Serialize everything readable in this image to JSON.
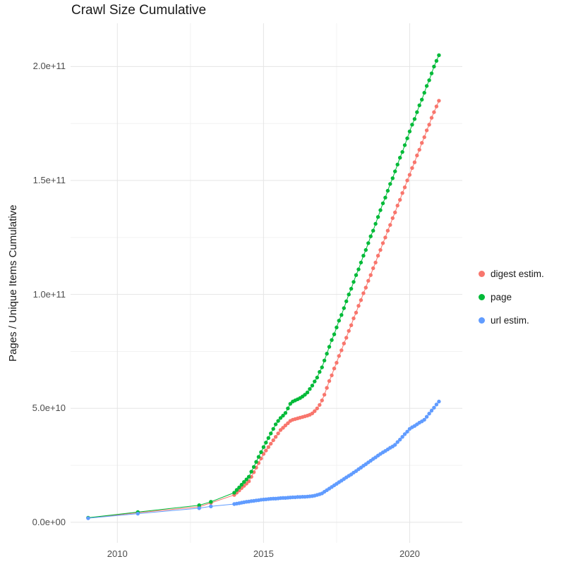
{
  "chart_data": {
    "type": "scatter",
    "title": "Crawl Size Cumulative",
    "xlabel": "",
    "ylabel": "Pages / Unique Items Cumulative",
    "legend_position": "right",
    "grid": true,
    "grid_major_color": "#e5e5e5",
    "grid_minor_color": "#f2f2f2",
    "xlim": [
      2008.4,
      2021.8
    ],
    "ylim_billions": [
      -9,
      219
    ],
    "y_unit": 1000000000,
    "y_unit_label": "values in billions (1e9)",
    "x_ticks": [
      {
        "value": 2010,
        "label": "2010"
      },
      {
        "value": 2015,
        "label": "2015"
      },
      {
        "value": 2020,
        "label": "2020"
      }
    ],
    "x_minor_ticks": [
      2012.5,
      2017.5
    ],
    "y_ticks_billions": [
      {
        "value": 0,
        "label": "0.0e+00"
      },
      {
        "value": 50,
        "label": "5.0e+10"
      },
      {
        "value": 100,
        "label": "1.0e+11"
      },
      {
        "value": 150,
        "label": "1.5e+11"
      },
      {
        "value": 200,
        "label": "2.0e+11"
      }
    ],
    "y_minor_ticks_billions": [
      25,
      75,
      125,
      175
    ],
    "series": [
      {
        "name": "digest estim.",
        "color": "#F8766D",
        "points_year_billions": [
          [
            2009,
            1.9
          ],
          [
            2010.7,
            4.2
          ],
          [
            2012.8,
            6.8
          ],
          [
            2013.2,
            8.5
          ],
          [
            2014,
            12.0
          ],
          [
            2014.083,
            13.0
          ],
          [
            2014.167,
            14.0
          ],
          [
            2014.25,
            15.0
          ],
          [
            2014.333,
            16.0
          ],
          [
            2014.417,
            17.0
          ],
          [
            2014.5,
            18.0
          ],
          [
            2014.583,
            20.0
          ],
          [
            2014.667,
            22.0
          ],
          [
            2014.75,
            24.0
          ],
          [
            2014.833,
            26.0
          ],
          [
            2014.917,
            28.0
          ],
          [
            2015,
            30.0
          ],
          [
            2015.083,
            31.5
          ],
          [
            2015.167,
            33.0
          ],
          [
            2015.25,
            34.5
          ],
          [
            2015.333,
            36.0
          ],
          [
            2015.417,
            37.5
          ],
          [
            2015.5,
            39.0
          ],
          [
            2015.583,
            40.5
          ],
          [
            2015.667,
            41.5
          ],
          [
            2015.75,
            42.5
          ],
          [
            2015.833,
            43.5
          ],
          [
            2015.917,
            44.5
          ],
          [
            2016,
            45.0
          ],
          [
            2016.083,
            45.3
          ],
          [
            2016.167,
            45.6
          ],
          [
            2016.25,
            45.9
          ],
          [
            2016.333,
            46.2
          ],
          [
            2016.417,
            46.5
          ],
          [
            2016.5,
            46.8
          ],
          [
            2016.583,
            47.2
          ],
          [
            2016.667,
            47.8
          ],
          [
            2016.75,
            48.8
          ],
          [
            2016.833,
            50.0
          ],
          [
            2016.917,
            51.5
          ],
          [
            2017,
            53.5
          ],
          [
            2017.083,
            56.0
          ],
          [
            2017.167,
            59.0
          ],
          [
            2017.25,
            62.0
          ],
          [
            2017.333,
            64.5
          ],
          [
            2017.417,
            67.5
          ],
          [
            2017.5,
            70.0
          ],
          [
            2017.583,
            73.0
          ],
          [
            2017.667,
            75.5
          ],
          [
            2017.75,
            78.5
          ],
          [
            2017.833,
            81.0
          ],
          [
            2017.917,
            84.0
          ],
          [
            2018,
            86.5
          ],
          [
            2018.083,
            89.5
          ],
          [
            2018.167,
            92.0
          ],
          [
            2018.25,
            95.0
          ],
          [
            2018.333,
            97.5
          ],
          [
            2018.417,
            100.5
          ],
          [
            2018.5,
            103.0
          ],
          [
            2018.583,
            106.0
          ],
          [
            2018.667,
            108.5
          ],
          [
            2018.75,
            111.5
          ],
          [
            2018.833,
            114.0
          ],
          [
            2018.917,
            117.0
          ],
          [
            2019,
            119.5
          ],
          [
            2019.083,
            122.5
          ],
          [
            2019.167,
            125.0
          ],
          [
            2019.25,
            128.0
          ],
          [
            2019.333,
            130.5
          ],
          [
            2019.417,
            133.5
          ],
          [
            2019.5,
            136.0
          ],
          [
            2019.583,
            139.0
          ],
          [
            2019.667,
            141.5
          ],
          [
            2019.75,
            144.5
          ],
          [
            2019.833,
            147.0
          ],
          [
            2019.917,
            150.0
          ],
          [
            2020,
            152.5
          ],
          [
            2020.083,
            155.5
          ],
          [
            2020.167,
            158.0
          ],
          [
            2020.25,
            161.0
          ],
          [
            2020.333,
            163.5
          ],
          [
            2020.417,
            166.5
          ],
          [
            2020.5,
            169.0
          ],
          [
            2020.583,
            172.0
          ],
          [
            2020.667,
            174.5
          ],
          [
            2020.75,
            177.5
          ],
          [
            2020.833,
            180.0
          ],
          [
            2020.917,
            182.5
          ],
          [
            2021,
            185.0
          ]
        ]
      },
      {
        "name": "page",
        "color": "#00BA38",
        "points_year_billions": [
          [
            2009,
            2.0
          ],
          [
            2010.7,
            4.5
          ],
          [
            2012.8,
            7.5
          ],
          [
            2013.2,
            9.0
          ],
          [
            2014,
            13.0
          ],
          [
            2014.083,
            14.2
          ],
          [
            2014.167,
            15.3
          ],
          [
            2014.25,
            16.5
          ],
          [
            2014.333,
            17.7
          ],
          [
            2014.417,
            18.8
          ],
          [
            2014.5,
            20.0
          ],
          [
            2014.583,
            22.2
          ],
          [
            2014.667,
            24.3
          ],
          [
            2014.75,
            26.5
          ],
          [
            2014.833,
            28.7
          ],
          [
            2014.917,
            30.8
          ],
          [
            2015,
            33.0
          ],
          [
            2015.083,
            35.0
          ],
          [
            2015.167,
            37.0
          ],
          [
            2015.25,
            39.0
          ],
          [
            2015.333,
            41.0
          ],
          [
            2015.417,
            43.0
          ],
          [
            2015.5,
            44.5
          ],
          [
            2015.583,
            45.8
          ],
          [
            2015.667,
            46.8
          ],
          [
            2015.75,
            48.0
          ],
          [
            2015.833,
            50.0
          ],
          [
            2015.917,
            52.0
          ],
          [
            2016,
            53.0
          ],
          [
            2016.083,
            53.5
          ],
          [
            2016.167,
            54.0
          ],
          [
            2016.25,
            54.5
          ],
          [
            2016.333,
            55.2
          ],
          [
            2016.417,
            56.0
          ],
          [
            2016.5,
            57.0
          ],
          [
            2016.583,
            58.5
          ],
          [
            2016.667,
            60.0
          ],
          [
            2016.75,
            61.8
          ],
          [
            2016.833,
            63.5
          ],
          [
            2016.917,
            66.0
          ],
          [
            2017,
            68.0
          ],
          [
            2017.083,
            71.0
          ],
          [
            2017.167,
            74.0
          ],
          [
            2017.25,
            77.0
          ],
          [
            2017.333,
            80.0
          ],
          [
            2017.417,
            82.5
          ],
          [
            2017.5,
            85.5
          ],
          [
            2017.583,
            88.5
          ],
          [
            2017.667,
            91.0
          ],
          [
            2017.75,
            94.0
          ],
          [
            2017.833,
            97.0
          ],
          [
            2017.917,
            100.0
          ],
          [
            2018,
            102.5
          ],
          [
            2018.083,
            105.5
          ],
          [
            2018.167,
            108.5
          ],
          [
            2018.25,
            111.0
          ],
          [
            2018.333,
            114.0
          ],
          [
            2018.417,
            117.0
          ],
          [
            2018.5,
            119.5
          ],
          [
            2018.583,
            122.5
          ],
          [
            2018.667,
            125.5
          ],
          [
            2018.75,
            128.0
          ],
          [
            2018.833,
            131.0
          ],
          [
            2018.917,
            134.0
          ],
          [
            2019,
            137.0
          ],
          [
            2019.083,
            140.0
          ],
          [
            2019.167,
            142.5
          ],
          [
            2019.25,
            145.5
          ],
          [
            2019.333,
            148.5
          ],
          [
            2019.417,
            151.0
          ],
          [
            2019.5,
            154.0
          ],
          [
            2019.583,
            157.0
          ],
          [
            2019.667,
            160.0
          ],
          [
            2019.75,
            162.5
          ],
          [
            2019.833,
            165.5
          ],
          [
            2019.917,
            168.5
          ],
          [
            2020,
            171.5
          ],
          [
            2020.083,
            174.5
          ],
          [
            2020.167,
            177.0
          ],
          [
            2020.25,
            180.0
          ],
          [
            2020.333,
            183.0
          ],
          [
            2020.417,
            185.5
          ],
          [
            2020.5,
            188.5
          ],
          [
            2020.583,
            191.5
          ],
          [
            2020.667,
            194.0
          ],
          [
            2020.75,
            197.0
          ],
          [
            2020.833,
            200.0
          ],
          [
            2020.917,
            202.5
          ],
          [
            2021,
            205.0
          ]
        ]
      },
      {
        "name": "url estim.",
        "color": "#619CFF",
        "points_year_billions": [
          [
            2009,
            1.8
          ],
          [
            2010.7,
            3.8
          ],
          [
            2012.8,
            6.2
          ],
          [
            2013.2,
            7.0
          ],
          [
            2014,
            8.0
          ],
          [
            2014.083,
            8.2
          ],
          [
            2014.167,
            8.4
          ],
          [
            2014.25,
            8.6
          ],
          [
            2014.333,
            8.8
          ],
          [
            2014.417,
            9.0
          ],
          [
            2014.5,
            9.1
          ],
          [
            2014.583,
            9.3
          ],
          [
            2014.667,
            9.4
          ],
          [
            2014.75,
            9.6
          ],
          [
            2014.833,
            9.7
          ],
          [
            2014.917,
            9.9
          ],
          [
            2015,
            10.0
          ],
          [
            2015.083,
            10.1
          ],
          [
            2015.167,
            10.2
          ],
          [
            2015.25,
            10.3
          ],
          [
            2015.333,
            10.4
          ],
          [
            2015.417,
            10.4
          ],
          [
            2015.5,
            10.5
          ],
          [
            2015.583,
            10.6
          ],
          [
            2015.667,
            10.7
          ],
          [
            2015.75,
            10.7
          ],
          [
            2015.833,
            10.8
          ],
          [
            2015.917,
            10.9
          ],
          [
            2016,
            11.0
          ],
          [
            2016.083,
            11.0
          ],
          [
            2016.167,
            11.1
          ],
          [
            2016.25,
            11.1
          ],
          [
            2016.333,
            11.2
          ],
          [
            2016.417,
            11.2
          ],
          [
            2016.5,
            11.3
          ],
          [
            2016.583,
            11.4
          ],
          [
            2016.667,
            11.5
          ],
          [
            2016.75,
            11.7
          ],
          [
            2016.833,
            12.0
          ],
          [
            2016.917,
            12.3
          ],
          [
            2017,
            12.7
          ],
          [
            2017.083,
            13.4
          ],
          [
            2017.167,
            14.1
          ],
          [
            2017.25,
            14.8
          ],
          [
            2017.333,
            15.5
          ],
          [
            2017.417,
            16.2
          ],
          [
            2017.5,
            16.9
          ],
          [
            2017.583,
            17.6
          ],
          [
            2017.667,
            18.3
          ],
          [
            2017.75,
            19.0
          ],
          [
            2017.833,
            19.7
          ],
          [
            2017.917,
            20.4
          ],
          [
            2018,
            21.0
          ],
          [
            2018.083,
            21.8
          ],
          [
            2018.167,
            22.5
          ],
          [
            2018.25,
            23.3
          ],
          [
            2018.333,
            24.0
          ],
          [
            2018.417,
            24.8
          ],
          [
            2018.5,
            25.5
          ],
          [
            2018.583,
            26.3
          ],
          [
            2018.667,
            27.0
          ],
          [
            2018.75,
            27.8
          ],
          [
            2018.833,
            28.5
          ],
          [
            2018.917,
            29.3
          ],
          [
            2019,
            30.0
          ],
          [
            2019.083,
            30.7
          ],
          [
            2019.167,
            31.3
          ],
          [
            2019.25,
            32.0
          ],
          [
            2019.333,
            32.7
          ],
          [
            2019.417,
            33.3
          ],
          [
            2019.5,
            34.0
          ],
          [
            2019.583,
            35.2
          ],
          [
            2019.667,
            36.3
          ],
          [
            2019.75,
            37.5
          ],
          [
            2019.833,
            38.7
          ],
          [
            2019.917,
            39.8
          ],
          [
            2020,
            41.0
          ],
          [
            2020.083,
            41.7
          ],
          [
            2020.167,
            42.3
          ],
          [
            2020.25,
            43.0
          ],
          [
            2020.333,
            43.7
          ],
          [
            2020.417,
            44.3
          ],
          [
            2020.5,
            45.0
          ],
          [
            2020.583,
            46.3
          ],
          [
            2020.667,
            47.7
          ],
          [
            2020.75,
            49.0
          ],
          [
            2020.833,
            50.3
          ],
          [
            2020.917,
            51.7
          ],
          [
            2021,
            53.0
          ]
        ]
      }
    ]
  }
}
